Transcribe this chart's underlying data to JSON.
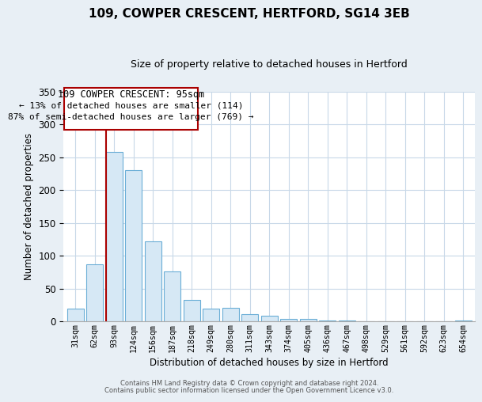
{
  "title": "109, COWPER CRESCENT, HERTFORD, SG14 3EB",
  "subtitle": "Size of property relative to detached houses in Hertford",
  "xlabel": "Distribution of detached houses by size in Hertford",
  "ylabel": "Number of detached properties",
  "bar_labels": [
    "31sqm",
    "62sqm",
    "93sqm",
    "124sqm",
    "156sqm",
    "187sqm",
    "218sqm",
    "249sqm",
    "280sqm",
    "311sqm",
    "343sqm",
    "374sqm",
    "405sqm",
    "436sqm",
    "467sqm",
    "498sqm",
    "529sqm",
    "561sqm",
    "592sqm",
    "623sqm",
    "654sqm"
  ],
  "bar_values": [
    20,
    87,
    258,
    230,
    122,
    76,
    33,
    20,
    21,
    11,
    9,
    4,
    4,
    2,
    1,
    0,
    0,
    0,
    0,
    0,
    2
  ],
  "bar_color_fill": "#d6e8f5",
  "bar_color_edge": "#6aaed6",
  "highlight_color": "#aa0000",
  "ylim": [
    0,
    350
  ],
  "yticks": [
    0,
    50,
    100,
    150,
    200,
    250,
    300,
    350
  ],
  "annotation_title": "109 COWPER CRESCENT: 95sqm",
  "annotation_line1": "← 13% of detached houses are smaller (114)",
  "annotation_line2": "87% of semi-detached houses are larger (769) →",
  "footer_line1": "Contains HM Land Registry data © Crown copyright and database right 2024.",
  "footer_line2": "Contains public sector information licensed under the Open Government Licence v3.0.",
  "bg_color": "#e8eff5",
  "plot_bg_color": "#ffffff",
  "grid_color": "#c8d8e8",
  "highlight_bar_index": 2
}
